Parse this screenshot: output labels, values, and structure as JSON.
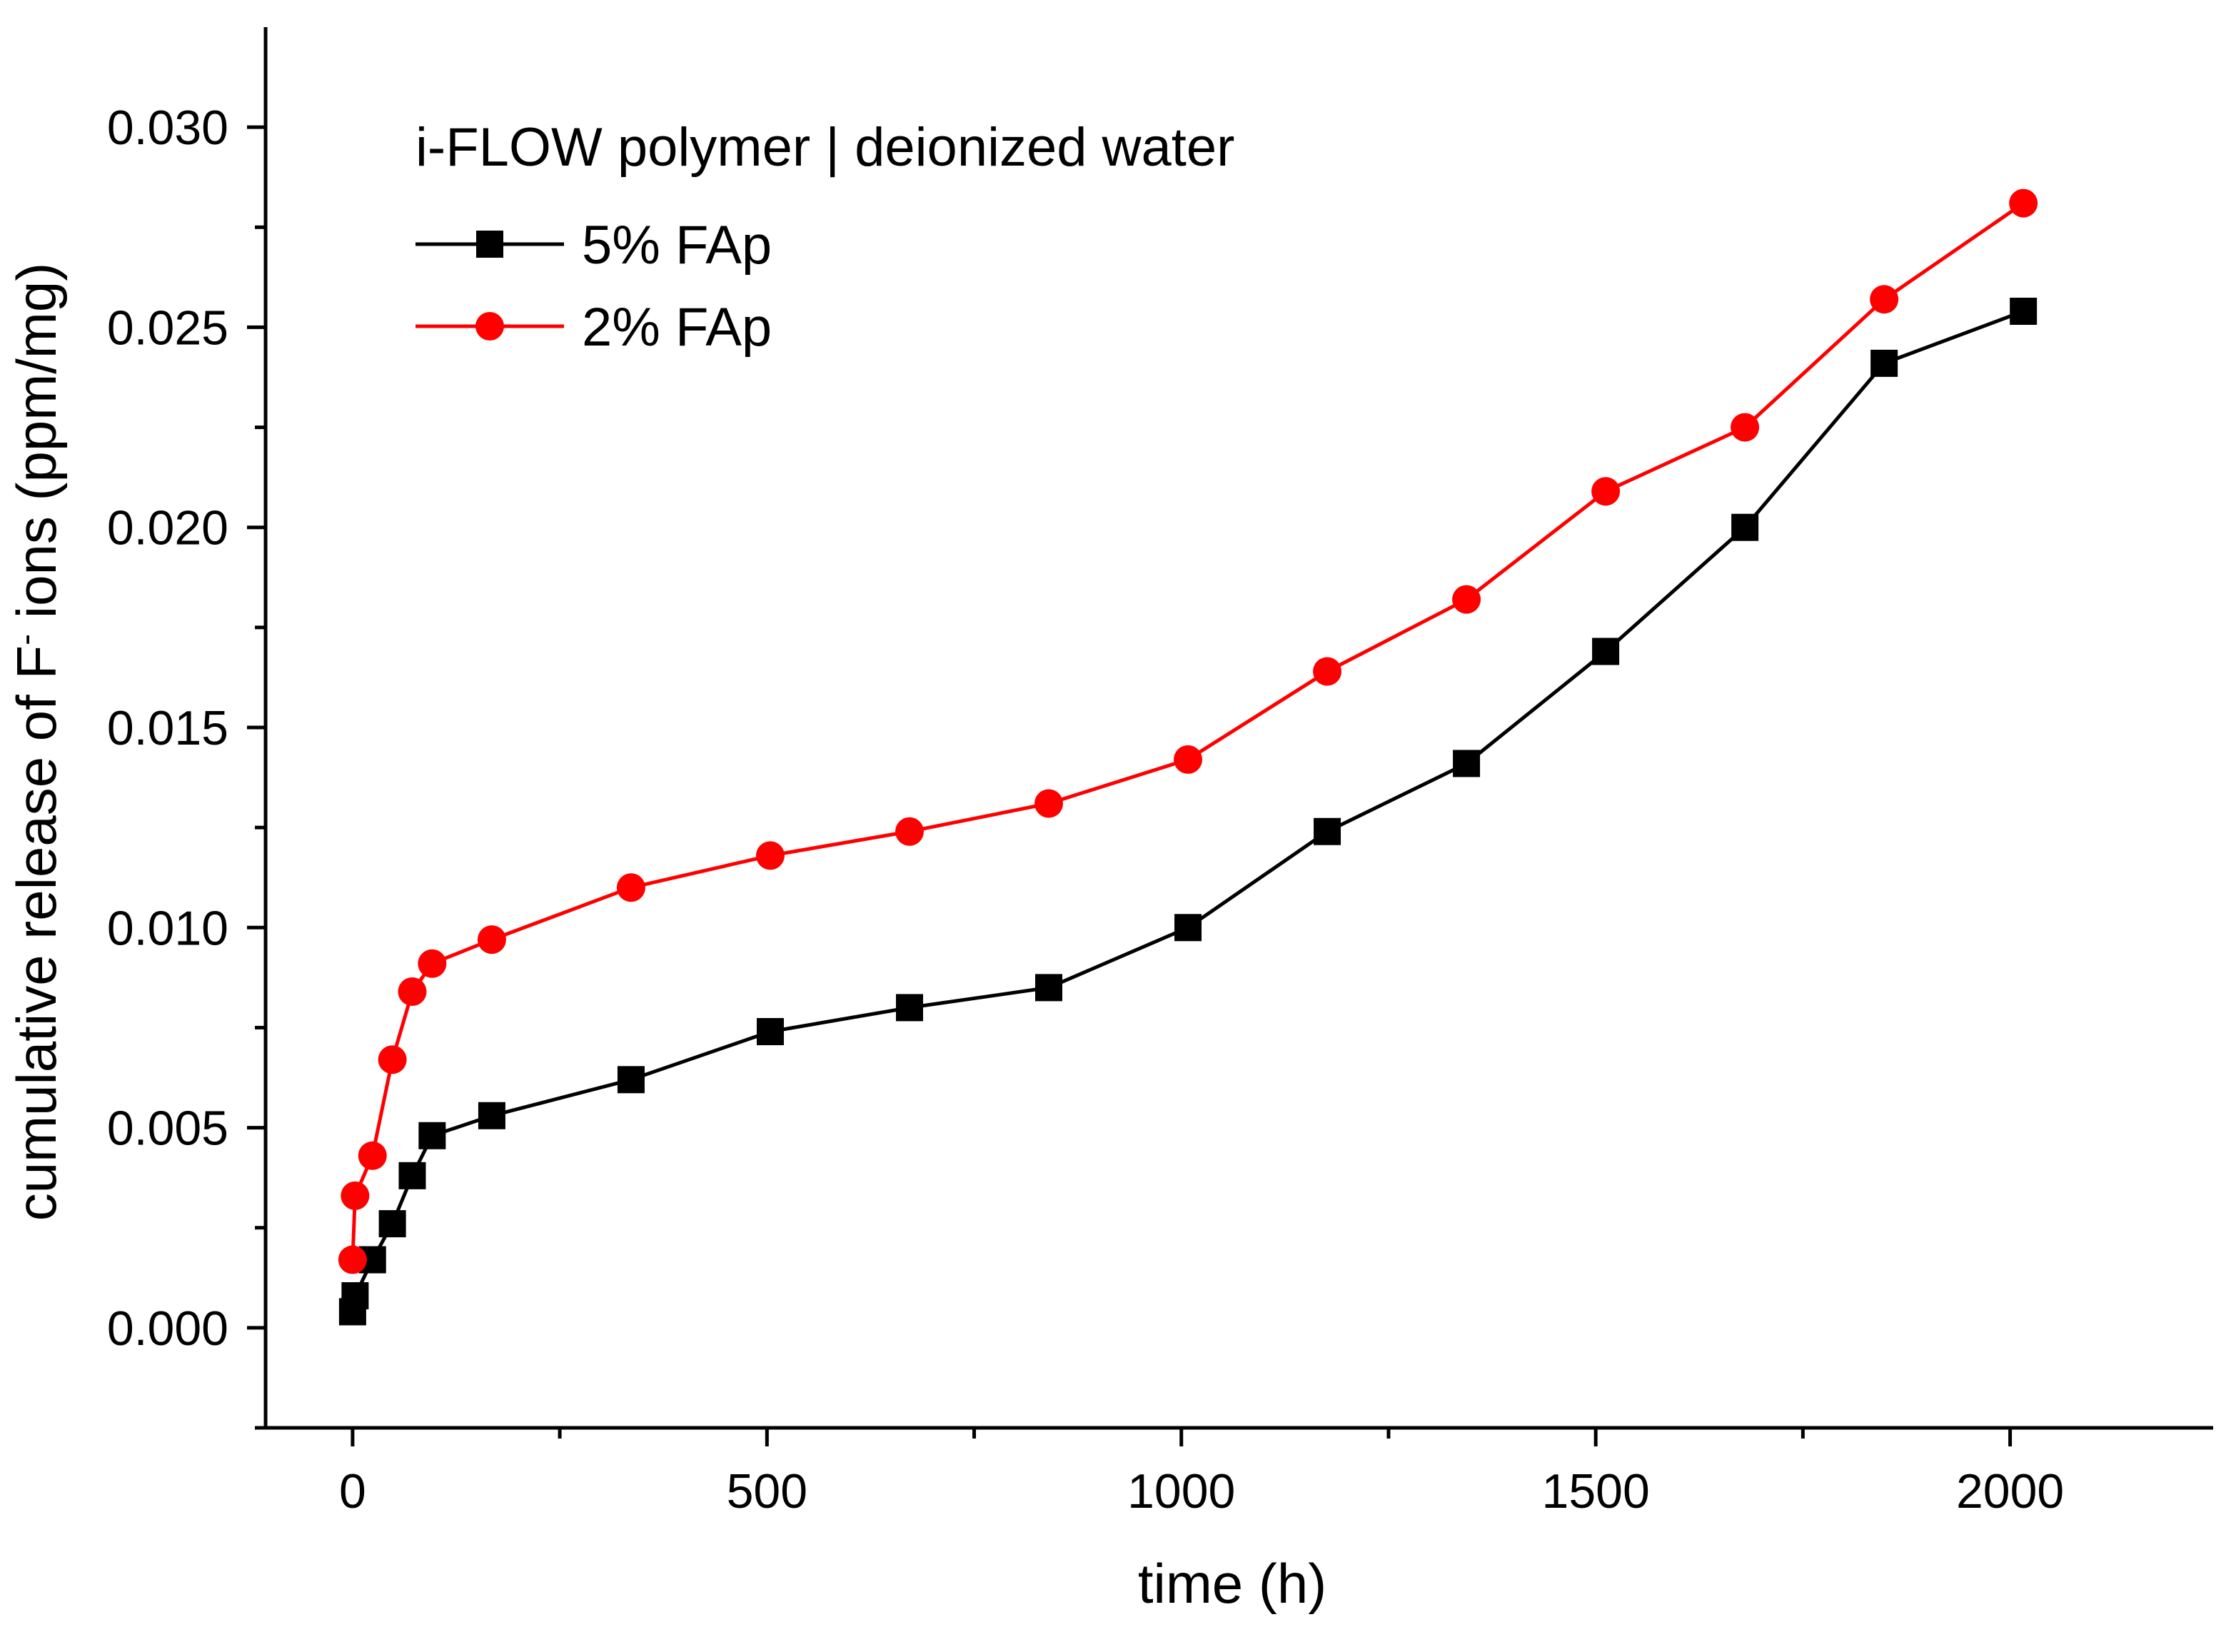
{
  "chart_data": {
    "type": "line",
    "title": "i-FLOW polymer | deionized water",
    "xlabel": "time (h)",
    "ylabel_prefix": "cumulative release of F",
    "ylabel_superscript": "-",
    "ylabel_suffix": " ions (ppm/mg)",
    "xlim": [
      -105,
      2245
    ],
    "ylim": [
      -0.0025,
      0.0325
    ],
    "x_ticks": [
      0,
      500,
      1000,
      1500,
      2000
    ],
    "x_tick_labels": [
      "0",
      "500",
      "1000",
      "1500",
      "2000"
    ],
    "y_ticks": [
      0.0,
      0.005,
      0.01,
      0.015,
      0.02,
      0.025,
      0.03
    ],
    "y_tick_labels": [
      "0.000",
      "0.005",
      "0.010",
      "0.015",
      "0.020",
      "0.025",
      "0.030"
    ],
    "legend_position": "top-left",
    "grid": false,
    "series": [
      {
        "name": "5% FAp",
        "color": "#000000",
        "marker": "square",
        "x": [
          0,
          3,
          24,
          48,
          72,
          96,
          168,
          336,
          504,
          672,
          840,
          1008,
          1176,
          1344,
          1512,
          1680,
          1848,
          2016
        ],
        "y": [
          0.0004,
          0.0008,
          0.0017,
          0.0026,
          0.0038,
          0.0048,
          0.0053,
          0.0062,
          0.0074,
          0.008,
          0.0085,
          0.01,
          0.0124,
          0.0141,
          0.0169,
          0.02,
          0.0241,
          0.0254
        ]
      },
      {
        "name": "2% FAp",
        "color": "#ff0000",
        "marker": "circle",
        "x": [
          0,
          3,
          24,
          48,
          72,
          96,
          168,
          336,
          504,
          672,
          840,
          1008,
          1176,
          1344,
          1512,
          1680,
          1848,
          2016
        ],
        "y": [
          0.0017,
          0.0033,
          0.0043,
          0.0067,
          0.0084,
          0.0091,
          0.0097,
          0.011,
          0.0118,
          0.0124,
          0.0131,
          0.0142,
          0.0164,
          0.0182,
          0.0209,
          0.0225,
          0.0257,
          0.0281
        ]
      }
    ]
  }
}
